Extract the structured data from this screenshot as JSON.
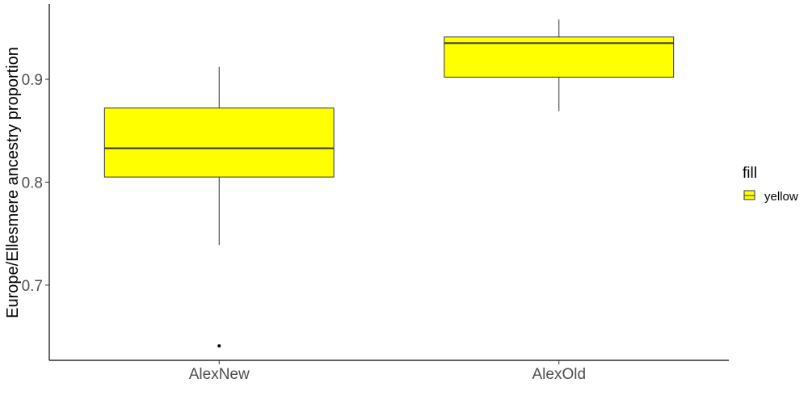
{
  "chart_data": {
    "type": "box",
    "ylabel": "Europe/Ellesmere ancestry proportion",
    "xlabel": "",
    "ylim": [
      0.627,
      0.973
    ],
    "yticks": [
      0.7,
      0.8,
      0.9
    ],
    "ytick_labels": [
      "0.7",
      "0.8",
      "0.9"
    ],
    "grid": false,
    "legend": {
      "title": "fill",
      "placement": "right",
      "entries": [
        {
          "label": "yellow",
          "color": "#ffff00"
        }
      ]
    },
    "fill_color": "#ffff00",
    "categories": [
      "AlexNew",
      "AlexOld"
    ],
    "boxes": [
      {
        "category": "AlexNew",
        "whisker_low": 0.739,
        "q1": 0.805,
        "median": 0.833,
        "q3": 0.872,
        "whisker_high": 0.912,
        "outliers": [
          0.641
        ]
      },
      {
        "category": "AlexOld",
        "whisker_low": 0.869,
        "q1": 0.902,
        "median": 0.935,
        "q3": 0.941,
        "whisker_high": 0.958,
        "outliers": []
      }
    ]
  }
}
